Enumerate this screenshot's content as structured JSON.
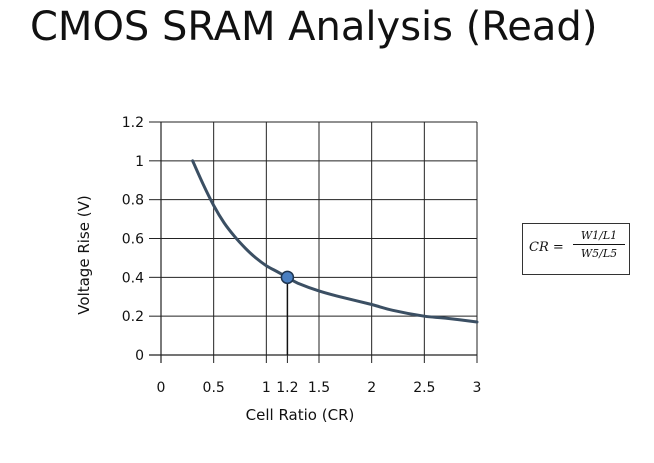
{
  "slide": {
    "title": "CMOS SRAM Analysis (Read)"
  },
  "formula": {
    "lhs": "CR =",
    "numerator": "W1/L1",
    "denominator": "W5/L5"
  },
  "chart_data": {
    "type": "line",
    "title": "",
    "xlabel": "Cell Ratio (CR)",
    "ylabel": "Voltage Rise (V)",
    "xlim": [
      0,
      3
    ],
    "ylim": [
      0,
      1.2
    ],
    "xticks": [
      0,
      0.5,
      1,
      1.2,
      1.5,
      2,
      2.5,
      3
    ],
    "yticks": [
      0,
      0.2,
      0.4,
      0.6,
      0.8,
      1,
      1.2
    ],
    "xtick_labels": [
      "0",
      "0.5",
      "1",
      "1.2",
      "1.5",
      "2",
      "2.5",
      "3"
    ],
    "ytick_labels": [
      "0",
      "0.2",
      "0.4",
      "0.6",
      "0.8",
      "1",
      "1.2"
    ],
    "grid": true,
    "series": [
      {
        "color": "#3b4f63",
        "x": [
          0.3,
          0.4,
          0.5,
          0.6,
          0.7,
          0.8,
          0.9,
          1.0,
          1.1,
          1.2,
          1.3,
          1.5,
          1.7,
          2.0,
          2.2,
          2.5,
          2.7,
          3.0
        ],
        "y": [
          1.0,
          0.88,
          0.77,
          0.68,
          0.61,
          0.55,
          0.5,
          0.46,
          0.43,
          0.4,
          0.37,
          0.33,
          0.3,
          0.26,
          0.23,
          0.2,
          0.19,
          0.17
        ]
      }
    ],
    "annotations": [
      {
        "type": "point",
        "x": 1.2,
        "y": 0.4,
        "color": "#4a7fc1"
      }
    ]
  }
}
